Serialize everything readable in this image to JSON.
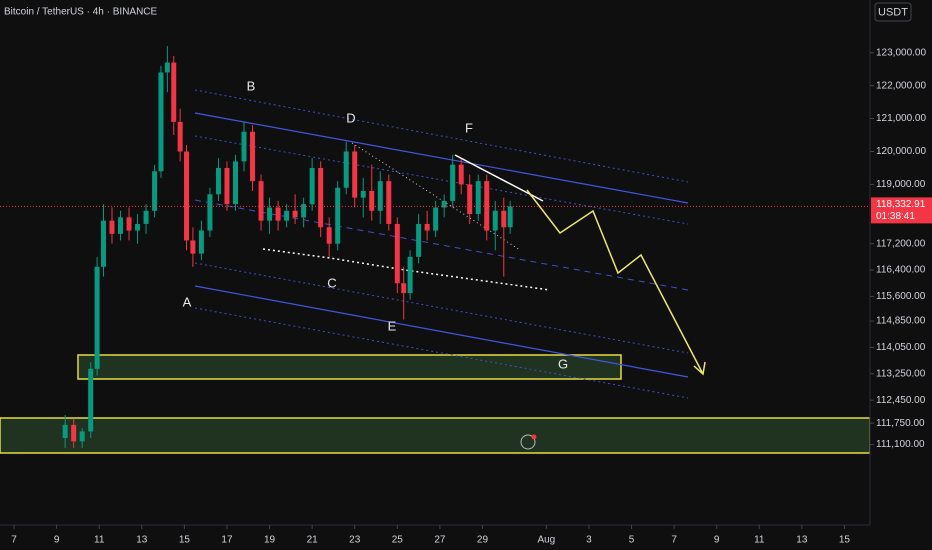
{
  "chart_data": {
    "type": "candlestick",
    "title": "Bitcoin / TetherUS · 4h · BINANCE",
    "currency": "USDT",
    "price_label": "118,332.91",
    "countdown": "01:38:41",
    "annotations": [
      "A",
      "B",
      "C",
      "D",
      "E",
      "F",
      "G"
    ],
    "up_color": "#089981",
    "down_color": "#f23645",
    "x": [
      9.4,
      9.8,
      10.2,
      10.6,
      10.9,
      11.2,
      11.6,
      12.0,
      12.4,
      12.8,
      13.2,
      13.6,
      13.9,
      14.2,
      14.5,
      14.8,
      15.1,
      15.4,
      15.8,
      16.2,
      16.6,
      17.0,
      17.4,
      17.8,
      18.2,
      18.6,
      19.0,
      19.4,
      19.8,
      20.2,
      20.6,
      21.0,
      21.4,
      21.8,
      22.2,
      22.6,
      23.0,
      23.4,
      23.8,
      24.2,
      24.6,
      25.0,
      25.3,
      25.6,
      26.0,
      26.4,
      26.8,
      27.2,
      27.6,
      28.0,
      28.4,
      28.8,
      29.2,
      29.6,
      30.0,
      30.3
    ],
    "open": [
      111300,
      111700,
      111200,
      111500,
      113400,
      116500,
      117900,
      117500,
      118000,
      117600,
      117800,
      118200,
      119400,
      122400,
      122700,
      120900,
      120000,
      117300,
      116900,
      117600,
      118700,
      119500,
      118400,
      119700,
      120600,
      119100,
      117900,
      118300,
      117900,
      118200,
      118000,
      118400,
      119500,
      117700,
      117200,
      118900,
      120000,
      118600,
      118800,
      118200,
      119100,
      117800,
      116000,
      115700,
      116800,
      117800,
      117600,
      118300,
      118500,
      119600,
      119000,
      118100,
      119100,
      117600,
      118200,
      117700
    ],
    "high": [
      112000,
      111900,
      111600,
      113600,
      116800,
      118400,
      118300,
      118200,
      118300,
      118100,
      118400,
      119600,
      122600,
      123200,
      122900,
      121300,
      120200,
      117700,
      117900,
      118900,
      119800,
      119700,
      119900,
      120900,
      120800,
      119300,
      118600,
      118500,
      118400,
      118700,
      118600,
      119800,
      119700,
      118000,
      119100,
      120300,
      120200,
      119200,
      119600,
      119400,
      119300,
      118000,
      116500,
      117000,
      118100,
      118200,
      118500,
      118700,
      119900,
      119800,
      119300,
      119300,
      119300,
      118500,
      118600,
      118500
    ],
    "low": [
      111000,
      111000,
      111000,
      111300,
      113200,
      116200,
      117200,
      117300,
      117300,
      117200,
      117500,
      118000,
      119200,
      121800,
      120500,
      119700,
      117000,
      116500,
      116700,
      117400,
      118500,
      118200,
      118200,
      119400,
      118800,
      117600,
      117500,
      117600,
      117700,
      117800,
      117700,
      118200,
      117400,
      116800,
      117000,
      118700,
      118300,
      118000,
      117900,
      117800,
      117600,
      115700,
      114900,
      115500,
      116600,
      117300,
      117400,
      118000,
      118300,
      118700,
      117800,
      117900,
      117300,
      117000,
      116200,
      117500
    ],
    "close": [
      111700,
      111200,
      111500,
      113400,
      116500,
      117900,
      117500,
      118000,
      117600,
      117800,
      118200,
      119400,
      122400,
      122700,
      120900,
      120000,
      117300,
      116900,
      117600,
      118700,
      119500,
      118400,
      119700,
      120600,
      119100,
      117900,
      118300,
      117900,
      118200,
      118000,
      118400,
      119500,
      117700,
      117200,
      118900,
      120000,
      118600,
      118800,
      118200,
      119100,
      117800,
      116000,
      115700,
      116800,
      117800,
      117600,
      118300,
      118500,
      119600,
      119000,
      118100,
      119100,
      117600,
      118200,
      117700,
      118332.91
    ],
    "xlim": [
      6.34,
      47.2
    ],
    "xticks": [
      7,
      9,
      11,
      13,
      15,
      17,
      19,
      21,
      23,
      25,
      27,
      29,
      {
        "value": 32,
        "label": "Aug"
      },
      {
        "value": 34,
        "label": "3"
      },
      {
        "value": 36,
        "label": "5"
      },
      {
        "value": 38,
        "label": "7"
      },
      {
        "value": 40,
        "label": "9"
      },
      {
        "value": 42,
        "label": "11"
      },
      {
        "value": 44,
        "label": "13"
      },
      {
        "value": 46,
        "label": "15"
      }
    ],
    "ylim": [
      108750,
      124600
    ],
    "yticks": [
      {
        "value": 123000,
        "label": "123,000.00"
      },
      {
        "value": 122000,
        "label": "122,000.00"
      },
      {
        "value": 121000,
        "label": "121,000.00"
      },
      {
        "value": 120000,
        "label": "120,000.00"
      },
      {
        "value": 119000,
        "label": "119,000.00"
      },
      {
        "value": 117200,
        "label": "117,200.00"
      },
      {
        "value": 116400,
        "label": "116,400.00"
      },
      {
        "value": 115600,
        "label": "115,600.00"
      },
      {
        "value": 114850,
        "label": "114,850.00"
      },
      {
        "value": 114050,
        "label": "114,050.00"
      },
      {
        "value": 113250,
        "label": "113,250.00"
      },
      {
        "value": 112450,
        "label": "112,450.00"
      },
      {
        "value": 111750,
        "label": "111,750.00"
      },
      {
        "value": 111100,
        "label": "111,100.00"
      }
    ]
  }
}
